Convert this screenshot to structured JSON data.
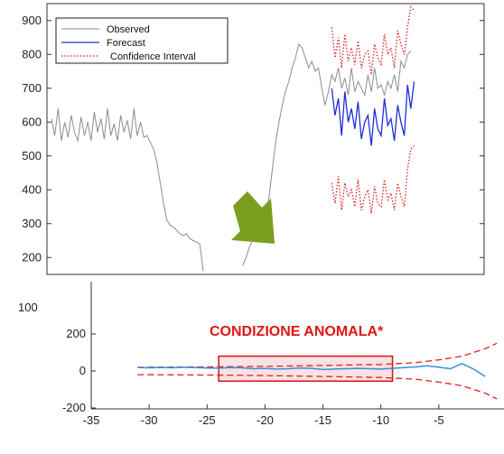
{
  "chart_data": [
    {
      "type": "line",
      "title": "",
      "xlabel": "",
      "ylabel": "",
      "ylim": [
        150,
        950
      ],
      "yticks": [
        200,
        300,
        400,
        500,
        600,
        700,
        800,
        900
      ],
      "grid": false,
      "legend_position": "top-left",
      "series": [
        {
          "name": "Observed",
          "color": "#8c8c8c",
          "style": "solid",
          "x": [
            0,
            1,
            2,
            3,
            4,
            5,
            6,
            7,
            8,
            9,
            10,
            11,
            12,
            13,
            14,
            15,
            16,
            17,
            18,
            19,
            20,
            21,
            22,
            23,
            24,
            25,
            26,
            27,
            28,
            29,
            30,
            31,
            32,
            33,
            34,
            35,
            36,
            37,
            38,
            39,
            40,
            41,
            42,
            43,
            44,
            45,
            46,
            47,
            48,
            49,
            50,
            51,
            52,
            53,
            54,
            55,
            56,
            57,
            58,
            59,
            60,
            61,
            62,
            63,
            64,
            65,
            66,
            67,
            68,
            69,
            70,
            71,
            72,
            73,
            74,
            75,
            76,
            77,
            78,
            79,
            80,
            81,
            82,
            83,
            84,
            85,
            86,
            87,
            88,
            89,
            90,
            91,
            92,
            93,
            94,
            95,
            96,
            97,
            98,
            99,
            100,
            101,
            102,
            103,
            104,
            105,
            106,
            107,
            108,
            109,
            110,
            111,
            112,
            113,
            114,
            115,
            116,
            117,
            118,
            119,
            120
          ],
          "values": [
            610,
            560,
            640,
            545,
            600,
            555,
            620,
            570,
            545,
            615,
            560,
            600,
            545,
            630,
            570,
            610,
            550,
            640,
            560,
            595,
            545,
            620,
            570,
            605,
            550,
            640,
            560,
            600,
            555,
            560,
            540,
            520,
            480,
            420,
            360,
            310,
            295,
            290,
            280,
            270,
            265,
            270,
            255,
            250,
            245,
            240,
            160,
            null,
            null,
            null,
            null,
            null,
            null,
            null,
            null,
            null,
            null,
            null,
            175,
            200,
            230,
            250,
            260,
            275,
            290,
            320,
            380,
            460,
            540,
            600,
            650,
            690,
            720,
            760,
            790,
            830,
            820,
            790,
            760,
            780,
            750,
            760,
            700,
            650,
            690,
            740,
            720,
            760,
            700,
            730,
            680,
            760,
            690,
            720,
            700,
            680,
            740,
            690,
            760,
            700,
            710,
            680,
            720,
            700,
            740,
            690,
            780,
            760,
            800,
            810,
            null,
            null,
            null,
            null,
            null,
            null,
            null,
            null,
            null,
            null,
            null
          ],
          "note": ""
        },
        {
          "name": "Forecast",
          "color": "#1f2fd6",
          "style": "solid",
          "x": [
            85,
            86,
            87,
            88,
            89,
            90,
            91,
            92,
            93,
            94,
            95,
            96,
            97,
            98,
            99,
            100,
            101,
            102,
            103,
            104,
            105,
            106,
            107,
            108,
            109,
            110
          ],
          "values": [
            700,
            620,
            670,
            560,
            690,
            600,
            640,
            580,
            660,
            550,
            600,
            620,
            530,
            640,
            580,
            560,
            670,
            590,
            610,
            545,
            650,
            600,
            560,
            710,
            640,
            720
          ]
        },
        {
          "name": "Confidence Interval",
          "color": "#e02020",
          "style": "dotted",
          "x": [
            85,
            86,
            87,
            88,
            89,
            90,
            91,
            92,
            93,
            94,
            95,
            96,
            97,
            98,
            99,
            100,
            101,
            102,
            103,
            104,
            105,
            106,
            107,
            108,
            109,
            110
          ],
          "upper": [
            880,
            790,
            850,
            760,
            860,
            780,
            820,
            770,
            840,
            760,
            800,
            810,
            740,
            830,
            790,
            770,
            860,
            800,
            820,
            760,
            870,
            830,
            800,
            880,
            940,
            930
          ],
          "lower": [
            420,
            360,
            440,
            340,
            420,
            380,
            400,
            350,
            430,
            340,
            380,
            400,
            330,
            410,
            360,
            350,
            430,
            370,
            390,
            340,
            420,
            380,
            350,
            460,
            520,
            530
          ]
        }
      ]
    },
    {
      "type": "line",
      "title": "",
      "xlabel": "",
      "ylabel": "",
      "xlim": [
        -35,
        0
      ],
      "ylim": [
        -200,
        200
      ],
      "xticks": [
        -35,
        -30,
        -25,
        -20,
        -15,
        -10,
        -5
      ],
      "yticks": [
        -200,
        0,
        200
      ],
      "extra_ytick_label": "100",
      "annotation": "CONDIZIONE ANOMALA*",
      "highlight_range_x": [
        -24,
        -9
      ],
      "highlight_range_y": [
        -55,
        80
      ],
      "series": [
        {
          "name": "",
          "color": "#3a8fd8",
          "style": "solid",
          "x": [
            -31,
            -30,
            -29,
            -28,
            -27,
            -26,
            -25,
            -24,
            -23,
            -22,
            -21,
            -20,
            -19,
            -18,
            -17,
            -16,
            -15,
            -14,
            -13,
            -12,
            -11,
            -10,
            -9,
            -8,
            -7,
            -6,
            -5,
            -4,
            -3,
            -2,
            -1
          ],
          "values": [
            18,
            17,
            19,
            17,
            20,
            18,
            16,
            15,
            18,
            17,
            12,
            14,
            10,
            12,
            16,
            14,
            8,
            10,
            12,
            14,
            12,
            10,
            14,
            18,
            22,
            28,
            20,
            12,
            40,
            10,
            -30
          ]
        },
        {
          "name": "",
          "color": "#e02020",
          "style": "dashed",
          "x": [
            -31,
            -25,
            -20,
            -15,
            -10,
            -7,
            -5,
            -3,
            -1,
            0
          ],
          "upper": [
            20,
            22,
            25,
            30,
            35,
            45,
            60,
            80,
            120,
            150
          ],
          "lower": [
            -20,
            -22,
            -25,
            -30,
            -35,
            -45,
            -60,
            -80,
            -120,
            -150
          ]
        }
      ]
    }
  ]
}
